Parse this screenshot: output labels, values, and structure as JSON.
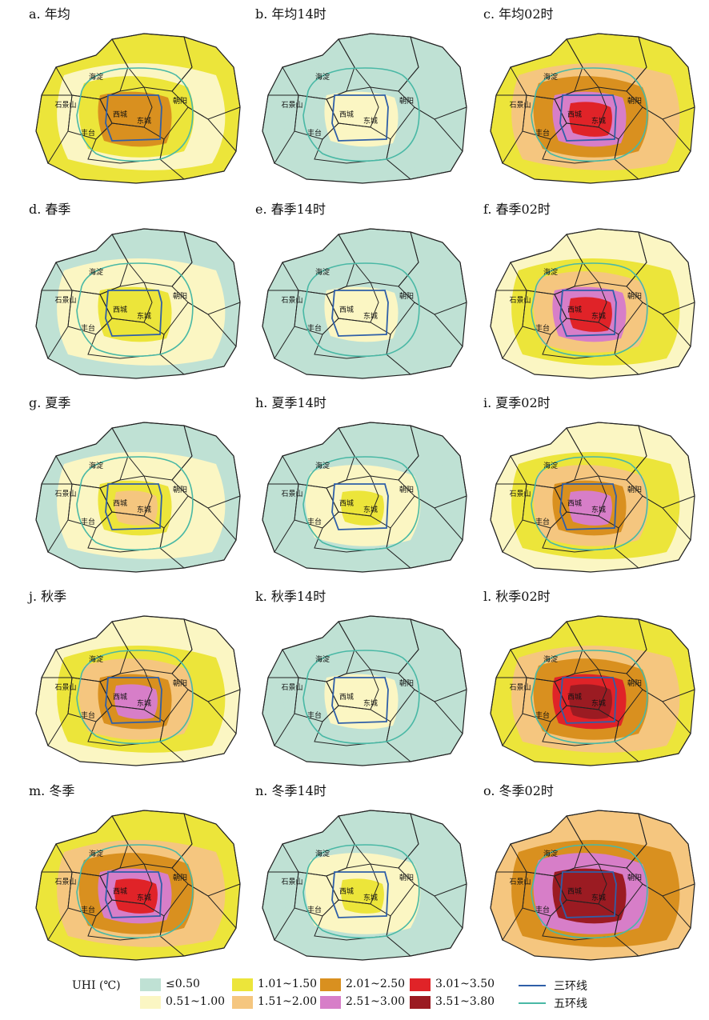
{
  "district_labels": [
    "海淀",
    "石景山",
    "西城",
    "东城",
    "朝阳",
    "丰台"
  ],
  "legend": {
    "title": "UHI (℃)",
    "classes": [
      {
        "label": "≤0.50",
        "color": "#bfe1d4"
      },
      {
        "label": "0.51~1.00",
        "color": "#fbf6c3"
      },
      {
        "label": "1.01~1.50",
        "color": "#ece53a"
      },
      {
        "label": "1.51~2.00",
        "color": "#f5c67f"
      },
      {
        "label": "2.01~2.50",
        "color": "#d9901f"
      },
      {
        "label": "2.51~3.00",
        "color": "#d77ec8"
      },
      {
        "label": "3.01~3.50",
        "color": "#e02328"
      },
      {
        "label": "3.51~3.80",
        "color": "#9b1b22"
      }
    ],
    "lines": [
      {
        "label": "三环线",
        "color": "#2f5fa8"
      },
      {
        "label": "五环线",
        "color": "#49b8a5"
      }
    ]
  },
  "panels": [
    {
      "title": "a. 年均",
      "bg": 2,
      "base": 1,
      "mid": 2,
      "inner": 4,
      "core": 4
    },
    {
      "title": "b. 年均14时",
      "bg": 0,
      "base": 0,
      "mid": 0,
      "inner": 1,
      "core": 1
    },
    {
      "title": "c. 年均02时",
      "bg": 2,
      "base": 3,
      "mid": 4,
      "inner": 5,
      "core": 6
    },
    {
      "title": "d. 春季",
      "bg": 0,
      "base": 1,
      "mid": 1,
      "inner": 2,
      "core": 2
    },
    {
      "title": "e. 春季14时",
      "bg": 0,
      "base": 0,
      "mid": 0,
      "inner": 1,
      "core": 1
    },
    {
      "title": "f. 春季02时",
      "bg": 1,
      "base": 2,
      "mid": 3,
      "inner": 5,
      "core": 6
    },
    {
      "title": "g. 夏季",
      "bg": 0,
      "base": 1,
      "mid": 1,
      "inner": 2,
      "core": 3
    },
    {
      "title": "h. 夏季14时",
      "bg": 0,
      "base": 0,
      "mid": 1,
      "inner": 1,
      "core": 2
    },
    {
      "title": "i. 夏季02时",
      "bg": 1,
      "base": 2,
      "mid": 3,
      "inner": 4,
      "core": 5
    },
    {
      "title": "j. 秋季",
      "bg": 1,
      "base": 2,
      "mid": 3,
      "inner": 4,
      "core": 5
    },
    {
      "title": "k. 秋季14时",
      "bg": 0,
      "base": 0,
      "mid": 0,
      "inner": 1,
      "core": 1
    },
    {
      "title": "l. 秋季02时",
      "bg": 2,
      "base": 3,
      "mid": 4,
      "inner": 6,
      "core": 7
    },
    {
      "title": "m. 冬季",
      "bg": 2,
      "base": 3,
      "mid": 4,
      "inner": 5,
      "core": 6
    },
    {
      "title": "n. 冬季14时",
      "bg": 0,
      "base": 0,
      "mid": 1,
      "inner": 1,
      "core": 2
    },
    {
      "title": "o. 冬季02时",
      "bg": 3,
      "base": 4,
      "mid": 5,
      "inner": 7,
      "core": 7
    }
  ]
}
